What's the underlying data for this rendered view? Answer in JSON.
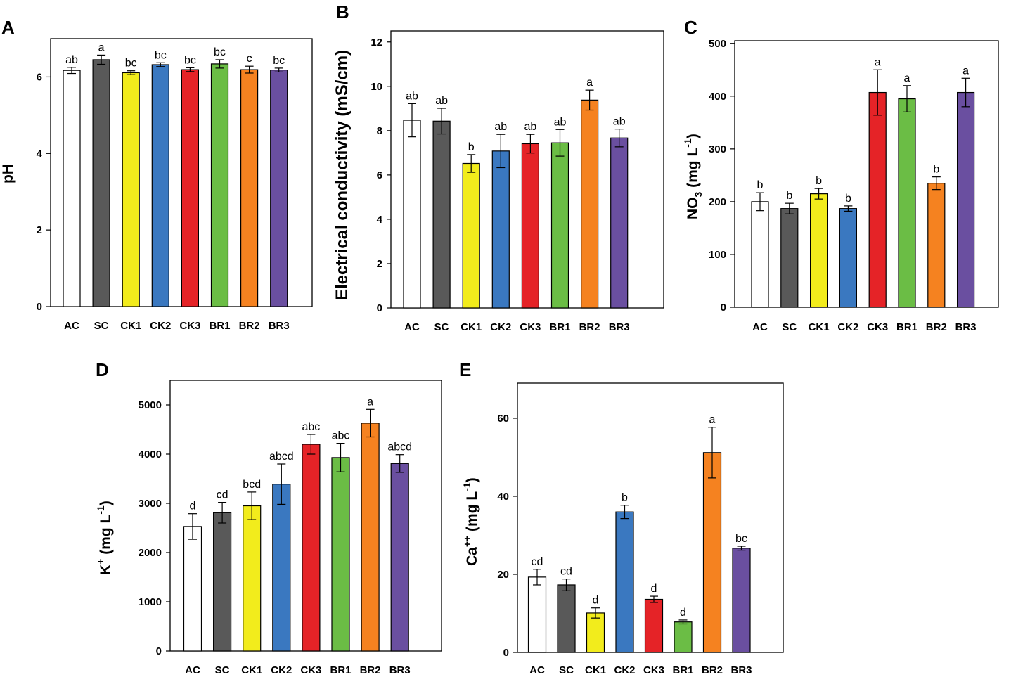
{
  "colors": {
    "AC": "#ffffff",
    "SC": "#595959",
    "CK1": "#f2ec1c",
    "CK2": "#3a78c0",
    "CK3": "#e52327",
    "BR1": "#6bbd45",
    "BR2": "#f58220",
    "BR3": "#6a4fa0"
  },
  "chart_data": [
    {
      "panel": "A",
      "type": "bar",
      "ylabel": "pH",
      "categories": [
        "AC",
        "SC",
        "CK1",
        "CK2",
        "CK3",
        "BR1",
        "BR2",
        "BR3"
      ],
      "values": [
        6.17,
        6.45,
        6.11,
        6.32,
        6.19,
        6.34,
        6.19,
        6.18
      ],
      "errors": [
        0.08,
        0.12,
        0.05,
        0.05,
        0.05,
        0.11,
        0.09,
        0.05
      ],
      "letters": [
        "ab",
        "a",
        "bc",
        "bc",
        "bc",
        "bc",
        "c",
        "bc"
      ],
      "ylim": [
        0,
        7
      ],
      "yticks": [
        0,
        2,
        4,
        6
      ]
    },
    {
      "panel": "B",
      "type": "bar",
      "ylabel": "Electrical conductivity (mS/cm)",
      "categories": [
        "AC",
        "SC",
        "CK1",
        "CK2",
        "CK3",
        "BR1",
        "BR2",
        "BR3"
      ],
      "values": [
        8.47,
        8.43,
        6.52,
        7.08,
        7.41,
        7.45,
        9.38,
        7.67
      ],
      "errors": [
        0.75,
        0.58,
        0.4,
        0.75,
        0.42,
        0.6,
        0.45,
        0.4
      ],
      "letters": [
        "ab",
        "ab",
        "b",
        "ab",
        "ab",
        "ab",
        "a",
        "ab"
      ],
      "ylim": [
        0,
        12.5
      ],
      "yticks": [
        0,
        2,
        4,
        6,
        8,
        10,
        12
      ]
    },
    {
      "panel": "C",
      "type": "bar",
      "ylabel": "NO3 (mg L-1)",
      "categories": [
        "AC",
        "SC",
        "CK1",
        "CK2",
        "CK3",
        "BR1",
        "BR2",
        "BR3"
      ],
      "values": [
        200,
        187,
        215,
        187,
        407,
        395,
        235,
        407
      ],
      "errors": [
        17,
        10,
        10,
        5,
        43,
        25,
        12,
        27
      ],
      "letters": [
        "b",
        "b",
        "b",
        "b",
        "a",
        "a",
        "b",
        "a"
      ],
      "ylim": [
        0,
        505
      ],
      "yticks": [
        0,
        100,
        200,
        300,
        400,
        500
      ]
    },
    {
      "panel": "D",
      "type": "bar",
      "ylabel": "K+ (mg L-1)",
      "categories": [
        "AC",
        "SC",
        "CK1",
        "CK2",
        "CK3",
        "BR1",
        "BR2",
        "BR3"
      ],
      "values": [
        2530,
        2810,
        2950,
        3390,
        4200,
        3930,
        4630,
        3810
      ],
      "errors": [
        260,
        210,
        280,
        410,
        200,
        290,
        280,
        180
      ],
      "letters": [
        "d",
        "cd",
        "bcd",
        "abcd",
        "abc",
        "abc",
        "a",
        "abcd"
      ],
      "ylim": [
        0,
        5500
      ],
      "yticks": [
        0,
        1000,
        2000,
        3000,
        4000,
        5000
      ]
    },
    {
      "panel": "E",
      "type": "bar",
      "ylabel": "Ca++ (mg L-1)",
      "categories": [
        "AC",
        "SC",
        "CK1",
        "CK2",
        "CK3",
        "BR1",
        "BR2",
        "BR3"
      ],
      "values": [
        19.3,
        17.3,
        10.1,
        36.0,
        13.6,
        7.8,
        51.2,
        26.7
      ],
      "errors": [
        2.0,
        1.5,
        1.3,
        1.7,
        0.8,
        0.5,
        6.5,
        0.5
      ],
      "letters": [
        "cd",
        "cd",
        "d",
        "b",
        "d",
        "d",
        "a",
        "bc"
      ],
      "ylim": [
        0,
        69
      ],
      "yticks": [
        0,
        20,
        40,
        60
      ]
    }
  ]
}
